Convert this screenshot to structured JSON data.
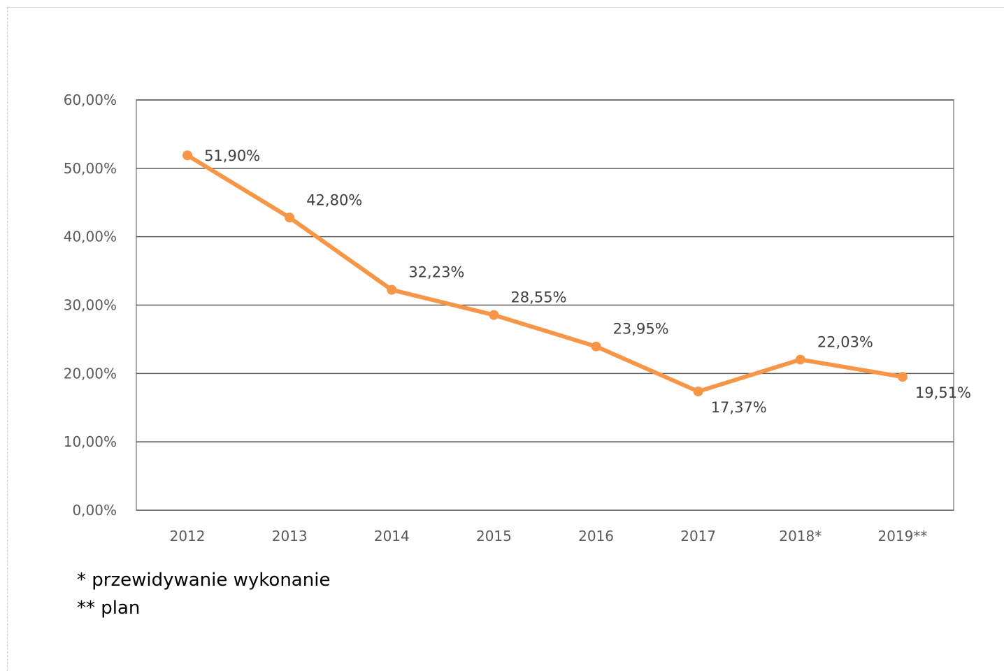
{
  "chart_data": {
    "type": "line",
    "categories": [
      "2012",
      "2013",
      "2014",
      "2015",
      "2016",
      "2017",
      "2018*",
      "2019**"
    ],
    "series": [
      {
        "values": [
          51.9,
          42.8,
          32.23,
          28.55,
          23.95,
          17.37,
          22.03,
          19.51
        ],
        "data_labels": [
          "51,90%",
          "42,80%",
          "32,23%",
          "28,55%",
          "23,95%",
          "17,37%",
          "22,03%",
          "19,51%"
        ],
        "color": "#f79646"
      }
    ],
    "ylim": [
      0,
      60
    ],
    "y_ticks": [
      {
        "value": 0,
        "label": "0,00%"
      },
      {
        "value": 10,
        "label": "10,00%"
      },
      {
        "value": 20,
        "label": "20,00%"
      },
      {
        "value": 30,
        "label": "30,00%"
      },
      {
        "value": 40,
        "label": "40,00%"
      },
      {
        "value": 50,
        "label": "50,00%"
      },
      {
        "value": 60,
        "label": "60,00%"
      }
    ],
    "grid": true,
    "legend": "none",
    "colors": {
      "line": "#f79646",
      "grid": "#595959",
      "axis_text": "#595959",
      "label_text": "#404040"
    }
  },
  "footnotes": {
    "line1": "* przewidywanie wykonanie",
    "line2": "** plan"
  }
}
